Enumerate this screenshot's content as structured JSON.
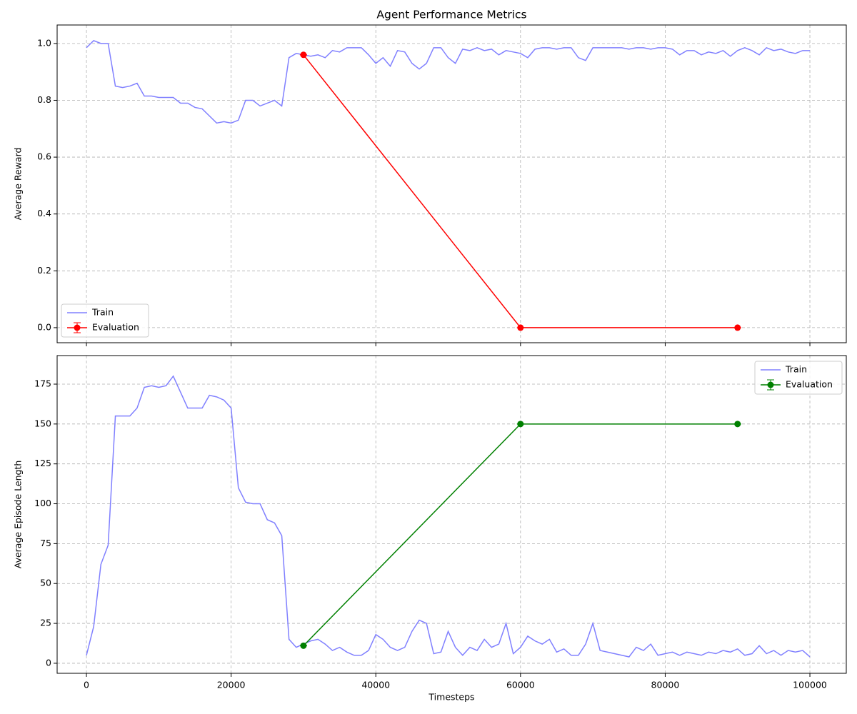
{
  "chart_data": [
    {
      "type": "line",
      "title": "Agent Performance Metrics",
      "ylabel": "Average Reward",
      "xlim": [
        -4050,
        105030
      ],
      "ylim": [
        -0.053,
        1.065
      ],
      "xticks": [
        0,
        20000,
        40000,
        60000,
        80000,
        100000
      ],
      "yticks": [
        {
          "value": 0,
          "label": "0.0"
        },
        0.2,
        0.4,
        0.6,
        0.8,
        {
          "value": 1,
          "label": "1.0"
        }
      ],
      "grid": true,
      "legend": "lower left",
      "series": [
        {
          "name": "Train",
          "color": "#8080ff",
          "x": [
            0,
            1000,
            2000,
            3000,
            4000,
            5000,
            6000,
            7000,
            8000,
            9000,
            10000,
            11000,
            12000,
            13000,
            14000,
            15000,
            16000,
            17000,
            18000,
            19000,
            20000,
            21000,
            22000,
            23000,
            24000,
            25000,
            26000,
            27000,
            28000,
            29000,
            30000,
            31000,
            32000,
            33000,
            34000,
            35000,
            36000,
            37000,
            38000,
            39000,
            40000,
            41000,
            42000,
            43000,
            44000,
            45000,
            46000,
            47000,
            48000,
            49000,
            50000,
            51000,
            52000,
            53000,
            54000,
            55000,
            56000,
            57000,
            58000,
            59000,
            60000,
            61000,
            62000,
            63000,
            64000,
            65000,
            66000,
            67000,
            68000,
            69000,
            70000,
            71000,
            72000,
            73000,
            74000,
            75000,
            76000,
            77000,
            78000,
            79000,
            80000,
            81000,
            82000,
            83000,
            84000,
            85000,
            86000,
            87000,
            88000,
            89000,
            90000,
            91000,
            92000,
            93000,
            94000,
            95000,
            96000,
            97000,
            98000,
            99000,
            100000
          ],
          "values": [
            0.985,
            1.01,
            1.0,
            1.0,
            0.85,
            0.845,
            0.85,
            0.86,
            0.815,
            0.815,
            0.81,
            0.81,
            0.81,
            0.79,
            0.79,
            0.775,
            0.77,
            0.745,
            0.72,
            0.725,
            0.72,
            0.73,
            0.8,
            0.8,
            0.78,
            0.79,
            0.8,
            0.78,
            0.95,
            0.965,
            0.96,
            0.955,
            0.96,
            0.95,
            0.975,
            0.97,
            0.985,
            0.985,
            0.985,
            0.96,
            0.93,
            0.95,
            0.92,
            0.975,
            0.97,
            0.93,
            0.91,
            0.93,
            0.985,
            0.985,
            0.95,
            0.93,
            0.98,
            0.975,
            0.985,
            0.975,
            0.98,
            0.96,
            0.975,
            0.97,
            0.965,
            0.95,
            0.98,
            0.985,
            0.985,
            0.98,
            0.985,
            0.985,
            0.95,
            0.94,
            0.985,
            0.985,
            0.985,
            0.985,
            0.985,
            0.98,
            0.985,
            0.985,
            0.98,
            0.985,
            0.985,
            0.98,
            0.96,
            0.975,
            0.975,
            0.96,
            0.97,
            0.965,
            0.975,
            0.955,
            0.975,
            0.985,
            0.975,
            0.96,
            0.985,
            0.975,
            0.98,
            0.97,
            0.965,
            0.975,
            0.975
          ]
        },
        {
          "name": "Evaluation",
          "color": "#ff0000",
          "errorbars": true,
          "x": [
            30000,
            60000,
            90000
          ],
          "values": [
            0.96,
            0,
            0
          ],
          "errors": [
            0,
            0,
            0
          ]
        }
      ]
    },
    {
      "type": "line",
      "xlabel": "Timesteps",
      "ylabel": "Average Episode Length",
      "xlim": [
        -4050,
        105030
      ],
      "ylim": [
        -6.3,
        192.9
      ],
      "xticks": [
        0,
        20000,
        40000,
        60000,
        80000,
        100000
      ],
      "yticks": [
        0,
        25,
        50,
        75,
        100,
        125,
        150,
        175
      ],
      "grid": true,
      "legend": "upper right",
      "series": [
        {
          "name": "Train",
          "color": "#8080ff",
          "x": [
            0,
            1000,
            2000,
            3000,
            4000,
            5000,
            6000,
            7000,
            8000,
            9000,
            10000,
            11000,
            12000,
            13000,
            14000,
            15000,
            16000,
            17000,
            18000,
            19000,
            20000,
            21000,
            22000,
            23000,
            24000,
            25000,
            26000,
            27000,
            28000,
            29000,
            30000,
            31000,
            32000,
            33000,
            34000,
            35000,
            36000,
            37000,
            38000,
            39000,
            40000,
            41000,
            42000,
            43000,
            44000,
            45000,
            46000,
            47000,
            48000,
            49000,
            50000,
            51000,
            52000,
            53000,
            54000,
            55000,
            56000,
            57000,
            58000,
            59000,
            60000,
            61000,
            62000,
            63000,
            64000,
            65000,
            66000,
            67000,
            68000,
            69000,
            70000,
            71000,
            72000,
            73000,
            74000,
            75000,
            76000,
            77000,
            78000,
            79000,
            80000,
            81000,
            82000,
            83000,
            84000,
            85000,
            86000,
            87000,
            88000,
            89000,
            90000,
            91000,
            92000,
            93000,
            94000,
            95000,
            96000,
            97000,
            98000,
            99000,
            100000
          ],
          "values": [
            5,
            23,
            62,
            74,
            155,
            155,
            155,
            160,
            173,
            174,
            173,
            174,
            180,
            170,
            160,
            160,
            160,
            168,
            167,
            165,
            160,
            110,
            101,
            100,
            100,
            90,
            88,
            80,
            15,
            10,
            12,
            14,
            15,
            12,
            8,
            10,
            7,
            5,
            5,
            8,
            18,
            15,
            10,
            8,
            10,
            20,
            27,
            25,
            6,
            7,
            20,
            10,
            5,
            10,
            8,
            15,
            10,
            12,
            25,
            6,
            10,
            17,
            14,
            12,
            15,
            7,
            9,
            5,
            5,
            12,
            25,
            8,
            7,
            6,
            5,
            4,
            10,
            8,
            12,
            5,
            6,
            7,
            5,
            7,
            6,
            5,
            7,
            6,
            8,
            7,
            9,
            5,
            6,
            11,
            6,
            8,
            5,
            8,
            7,
            8,
            4
          ]
        },
        {
          "name": "Evaluation",
          "color": "#008000",
          "errorbars": true,
          "x": [
            30000,
            60000,
            90000
          ],
          "values": [
            11,
            150,
            150
          ],
          "errors": [
            0,
            0,
            0
          ]
        }
      ]
    }
  ]
}
